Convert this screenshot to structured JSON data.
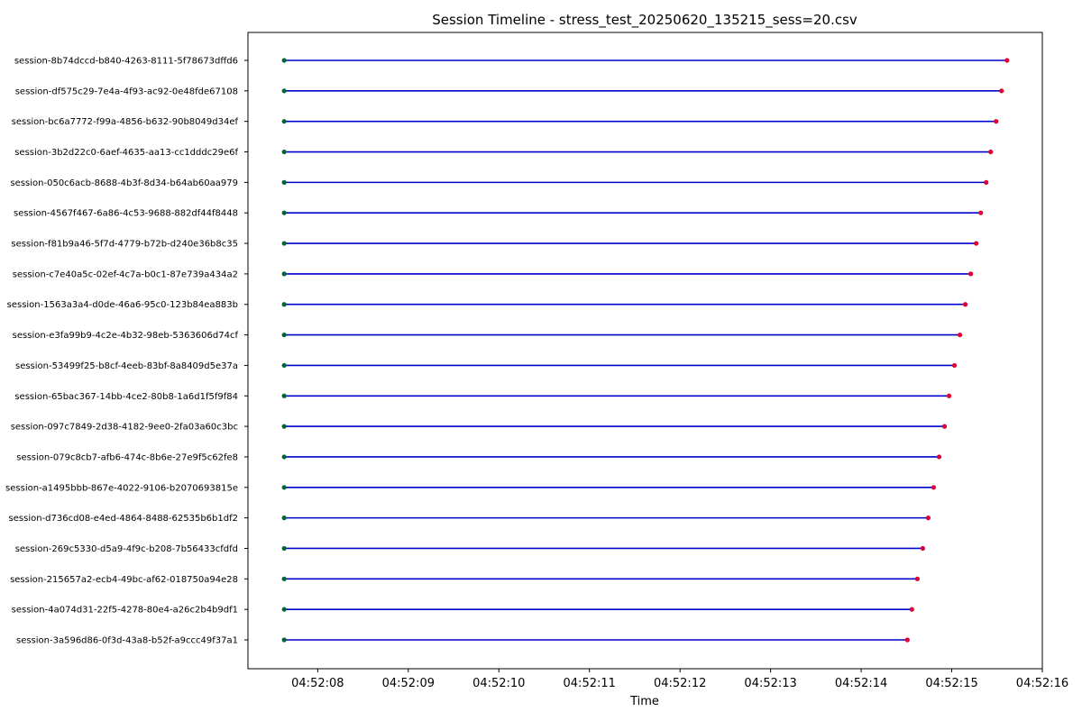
{
  "chart_data": {
    "type": "timeline",
    "title": "Session Timeline - stress_test_20250620_135215_sess=20.csv",
    "xlabel": "Time",
    "ylabel": "",
    "grid": false,
    "xlim_seconds": [
      7.23,
      16.0
    ],
    "x_ticks": [
      {
        "label": "04:52:08",
        "sec": 8
      },
      {
        "label": "04:52:09",
        "sec": 9
      },
      {
        "label": "04:52:10",
        "sec": 10
      },
      {
        "label": "04:52:11",
        "sec": 11
      },
      {
        "label": "04:52:12",
        "sec": 12
      },
      {
        "label": "04:52:13",
        "sec": 13
      },
      {
        "label": "04:52:14",
        "sec": 14
      },
      {
        "label": "04:52:15",
        "sec": 15
      },
      {
        "label": "04:52:16",
        "sec": 16
      }
    ],
    "colors": {
      "line": "#0000cc",
      "start_marker": "#006633",
      "end_marker": "#dd0033"
    },
    "sessions": [
      {
        "id": "session-8b74dccd-b840-4263-8111-5f78673dffd6",
        "start": 7.63,
        "end": 15.61
      },
      {
        "id": "session-df575c29-7e4a-4f93-ac92-0e48fde67108",
        "start": 7.63,
        "end": 15.55
      },
      {
        "id": "session-bc6a7772-f99a-4856-b632-90b8049d34ef",
        "start": 7.63,
        "end": 15.49
      },
      {
        "id": "session-3b2d22c0-6aef-4635-aa13-cc1dddc29e6f",
        "start": 7.63,
        "end": 15.43
      },
      {
        "id": "session-050c6acb-8688-4b3f-8d34-b64ab60aa979",
        "start": 7.63,
        "end": 15.38
      },
      {
        "id": "session-4567f467-6a86-4c53-9688-882df44f8448",
        "start": 7.63,
        "end": 15.32
      },
      {
        "id": "session-f81b9a46-5f7d-4779-b72b-d240e36b8c35",
        "start": 7.63,
        "end": 15.27
      },
      {
        "id": "session-c7e40a5c-02ef-4c7a-b0c1-87e739a434a2",
        "start": 7.63,
        "end": 15.21
      },
      {
        "id": "session-1563a3a4-d0de-46a6-95c0-123b84ea883b",
        "start": 7.63,
        "end": 15.15
      },
      {
        "id": "session-e3fa99b9-4c2e-4b32-98eb-5363606d74cf",
        "start": 7.63,
        "end": 15.09
      },
      {
        "id": "session-53499f25-b8cf-4eeb-83bf-8a8409d5e37a",
        "start": 7.63,
        "end": 15.03
      },
      {
        "id": "session-65bac367-14bb-4ce2-80b8-1a6d1f5f9f84",
        "start": 7.63,
        "end": 14.97
      },
      {
        "id": "session-097c7849-2d38-4182-9ee0-2fa03a60c3bc",
        "start": 7.63,
        "end": 14.92
      },
      {
        "id": "session-079c8cb7-afb6-474c-8b6e-27e9f5c62fe8",
        "start": 7.63,
        "end": 14.86
      },
      {
        "id": "session-a1495bbb-867e-4022-9106-b2070693815e",
        "start": 7.63,
        "end": 14.8
      },
      {
        "id": "session-d736cd08-e4ed-4864-8488-62535b6b1df2",
        "start": 7.63,
        "end": 14.74
      },
      {
        "id": "session-269c5330-d5a9-4f9c-b208-7b56433cfdfd",
        "start": 7.63,
        "end": 14.68
      },
      {
        "id": "session-215657a2-ecb4-49bc-af62-018750a94e28",
        "start": 7.63,
        "end": 14.62
      },
      {
        "id": "session-4a074d31-22f5-4278-80e4-a26c2b4b9df1",
        "start": 7.63,
        "end": 14.56
      },
      {
        "id": "session-3a596d86-0f3d-43a8-b52f-a9ccc49f37a1",
        "start": 7.63,
        "end": 14.51
      }
    ]
  }
}
